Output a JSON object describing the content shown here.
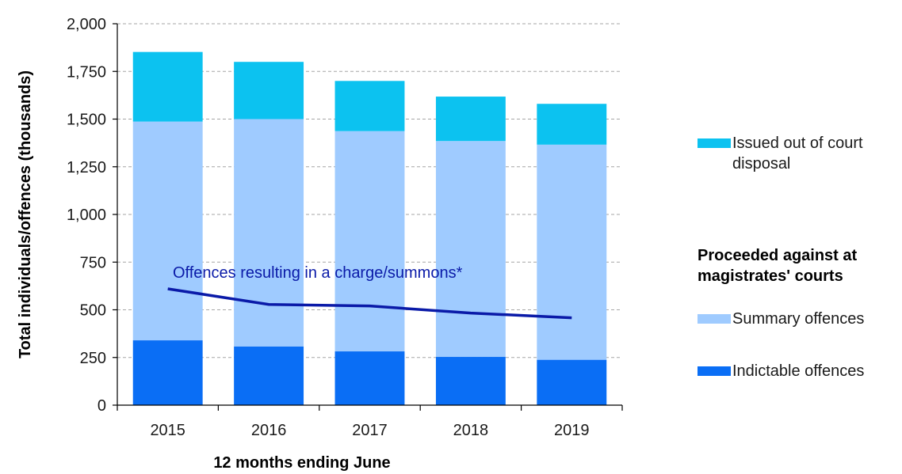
{
  "chart_data": {
    "type": "bar",
    "stacked": true,
    "categories": [
      "2015",
      "2016",
      "2017",
      "2018",
      "2019"
    ],
    "series": [
      {
        "name": "Indictable offences",
        "color": "#0a6ef5",
        "values": [
          340,
          308,
          282,
          253,
          238
        ]
      },
      {
        "name": "Summary offences",
        "color": "#9fcbff",
        "values": [
          1147,
          1192,
          1155,
          1132,
          1128
        ]
      },
      {
        "name": "Issued out of court disposal",
        "color": "#0cc2f0",
        "values": [
          365,
          300,
          263,
          233,
          214
        ]
      }
    ],
    "line_series": {
      "name": "Offences resulting in a charge/summons*",
      "color": "#0a1aa8",
      "values": [
        610,
        528,
        520,
        483,
        458
      ]
    },
    "xlabel": "12 months ending June",
    "ylabel": "Total individuals/offences  (thousands)",
    "ylim": [
      0,
      2000
    ],
    "yticks": [
      0,
      250,
      500,
      750,
      1000,
      1250,
      1500,
      1750,
      2000
    ],
    "ytick_labels": [
      "0",
      "250",
      "500",
      "750",
      "1,000",
      "1,250",
      "1,500",
      "1,750",
      "2,000"
    ],
    "grid": true,
    "legend_position": "right",
    "legend_heading": "Proceeded against at magistrates' courts"
  }
}
